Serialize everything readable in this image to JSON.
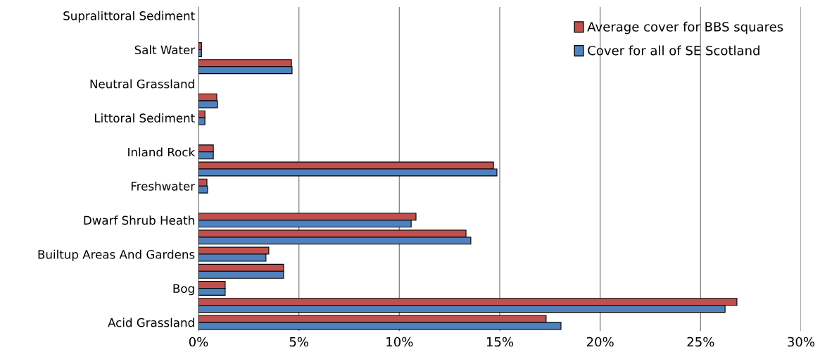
{
  "chart_data": {
    "type": "bar",
    "orientation": "horizontal",
    "categories": [
      "Supralittoral Sediment",
      null,
      "Salt Water",
      null,
      "Neutral Grassland",
      null,
      "Littoral Sediment",
      null,
      "Inland Rock",
      null,
      "Freshwater",
      null,
      "Dwarf Shrub Heath",
      null,
      "Builtup Areas And Gardens",
      null,
      "Bog",
      null,
      "Acid Grassland"
    ],
    "series": [
      {
        "name": "Average cover for BBS squares",
        "color": "#c0504d",
        "values": [
          0,
          0,
          0.15,
          4.63,
          0,
          0.91,
          0.32,
          0,
          0.74,
          14.69,
          0.42,
          0,
          10.83,
          13.32,
          3.5,
          4.24,
          1.33,
          26.81,
          17.31
        ]
      },
      {
        "name": "Cover for all of SE Scotland",
        "color": "#4f81bd",
        "values": [
          0,
          0,
          0.15,
          4.66,
          0,
          0.95,
          0.32,
          0,
          0.74,
          14.86,
          0.45,
          0,
          10.59,
          13.56,
          3.36,
          4.24,
          1.33,
          26.22,
          18.05
        ]
      }
    ],
    "xlim": [
      0,
      30
    ],
    "xticks": [
      {
        "value": 0,
        "label": "0%"
      },
      {
        "value": 5,
        "label": "5%"
      },
      {
        "value": 10,
        "label": "10%"
      },
      {
        "value": 15,
        "label": "15%"
      },
      {
        "value": 20,
        "label": "20%"
      },
      {
        "value": 25,
        "label": "25%"
      },
      {
        "value": 30,
        "label": "30%"
      }
    ],
    "grid": "x",
    "legend": "top right"
  }
}
